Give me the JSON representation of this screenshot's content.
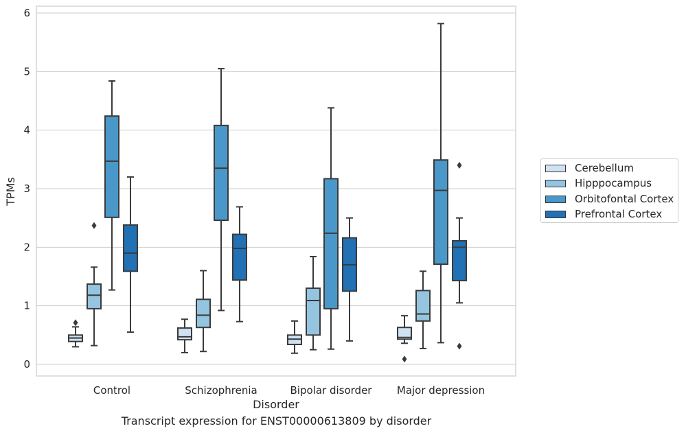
{
  "chart_data": {
    "type": "box",
    "caption": "Transcript expression for ENST00000613809 by disorder",
    "xlabel": "Disorder",
    "ylabel": "TPMs",
    "ylim": [
      -0.2,
      6.1
    ],
    "yticks": [
      "0",
      "1",
      "2",
      "3",
      "4",
      "5",
      "6"
    ],
    "grid": "horizontal",
    "legend_position": "right",
    "categories": [
      "Control",
      "Schizophrenia",
      "Bipolar disorder",
      "Major depression"
    ],
    "series": [
      {
        "name": "Cerebellum",
        "color": "#d0e1f2",
        "boxes": [
          {
            "whislo": 0.3,
            "q1": 0.39,
            "med": 0.45,
            "q3": 0.5,
            "whishi": 0.64,
            "fliers": [
              0.71
            ]
          },
          {
            "whislo": 0.2,
            "q1": 0.42,
            "med": 0.47,
            "q3": 0.62,
            "whishi": 0.77,
            "fliers": []
          },
          {
            "whislo": 0.19,
            "q1": 0.34,
            "med": 0.43,
            "q3": 0.5,
            "whishi": 0.74,
            "fliers": []
          },
          {
            "whislo": 0.36,
            "q1": 0.43,
            "med": 0.46,
            "q3": 0.63,
            "whishi": 0.83,
            "fliers": [
              0.09
            ]
          }
        ]
      },
      {
        "name": "Hipppocampus",
        "color": "#94c4df",
        "boxes": [
          {
            "whislo": 0.32,
            "q1": 0.95,
            "med": 1.18,
            "q3": 1.37,
            "whishi": 1.66,
            "fliers": [
              2.37
            ]
          },
          {
            "whislo": 0.22,
            "q1": 0.63,
            "med": 0.84,
            "q3": 1.11,
            "whishi": 1.6,
            "fliers": []
          },
          {
            "whislo": 0.25,
            "q1": 0.5,
            "med": 1.09,
            "q3": 1.3,
            "whishi": 1.84,
            "fliers": []
          },
          {
            "whislo": 0.27,
            "q1": 0.74,
            "med": 0.86,
            "q3": 1.26,
            "whishi": 1.59,
            "fliers": []
          }
        ]
      },
      {
        "name": "Orbitofontal Cortex",
        "color": "#4a98c9",
        "boxes": [
          {
            "whislo": 1.27,
            "q1": 2.51,
            "med": 3.47,
            "q3": 4.24,
            "whishi": 4.84,
            "fliers": []
          },
          {
            "whislo": 0.92,
            "q1": 2.46,
            "med": 3.35,
            "q3": 4.08,
            "whishi": 5.05,
            "fliers": []
          },
          {
            "whislo": 0.26,
            "q1": 0.95,
            "med": 2.24,
            "q3": 3.17,
            "whishi": 4.38,
            "fliers": []
          },
          {
            "whislo": 0.37,
            "q1": 1.71,
            "med": 2.97,
            "q3": 3.49,
            "whishi": 5.82,
            "fliers": []
          }
        ]
      },
      {
        "name": "Prefrontal Cortex",
        "color": "#2271b5",
        "boxes": [
          {
            "whislo": 0.55,
            "q1": 1.59,
            "med": 1.9,
            "q3": 2.38,
            "whishi": 3.2,
            "fliers": []
          },
          {
            "whislo": 0.73,
            "q1": 1.44,
            "med": 1.98,
            "q3": 2.22,
            "whishi": 2.69,
            "fliers": []
          },
          {
            "whislo": 0.4,
            "q1": 1.25,
            "med": 1.7,
            "q3": 2.16,
            "whishi": 2.5,
            "fliers": []
          },
          {
            "whislo": 1.05,
            "q1": 1.43,
            "med": 2.0,
            "q3": 2.11,
            "whishi": 2.5,
            "fliers": [
              3.4,
              0.31
            ]
          }
        ]
      }
    ]
  }
}
